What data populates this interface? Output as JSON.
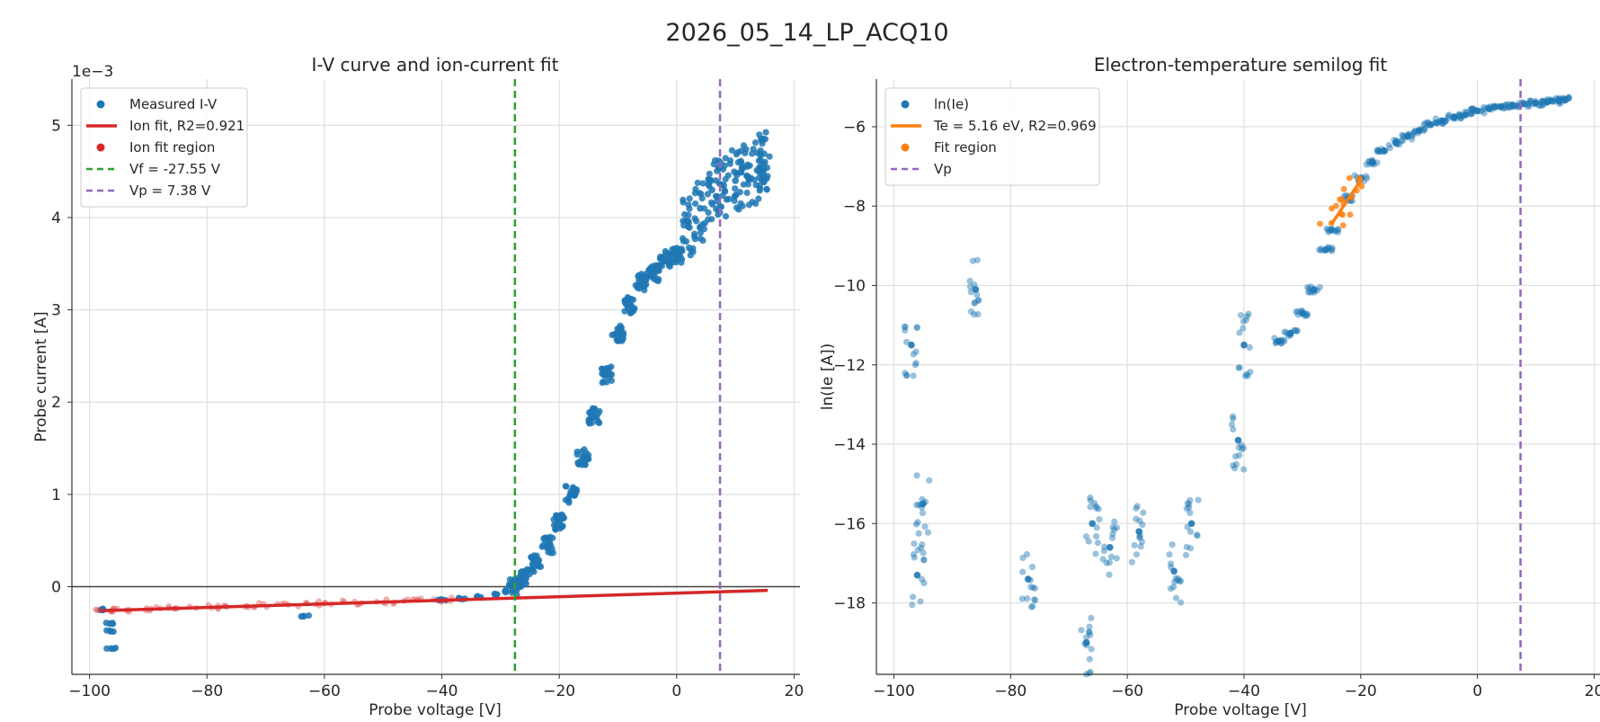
{
  "suptitle": "2026_05_14_LP_ACQ10",
  "colors": {
    "measured": "#1f77b4",
    "ion_fit": "#d62728",
    "vf": "#2ca02c",
    "vp": "#9467bd",
    "te_fit": "#ff7f0e",
    "zero_line": "#444444",
    "grid": "#dedede"
  },
  "chart_data": [
    {
      "type": "scatter",
      "title": "I-V curve and ion-current fit",
      "xlabel": "Probe voltage [V]",
      "ylabel": "Probe current [A]",
      "y_scale_label": "1e−3",
      "xlim": [
        -103,
        21
      ],
      "ylim": [
        -0.95,
        5.5
      ],
      "xticks": [
        -100,
        -80,
        -60,
        -40,
        -20,
        0,
        20
      ],
      "xtick_labels": [
        "−100",
        "−80",
        "−60",
        "−40",
        "−20",
        "0",
        "20"
      ],
      "yticks": [
        0,
        1,
        2,
        3,
        4,
        5
      ],
      "ytick_labels": [
        "0",
        "1",
        "2",
        "3",
        "4",
        "5"
      ],
      "grid": true,
      "legend_position": "top-left",
      "legend": [
        {
          "label": "Measured I-V",
          "kind": "dot",
          "color": "#1f77b4"
        },
        {
          "label": "Ion fit, R2=0.921",
          "kind": "line",
          "color": "#d62728"
        },
        {
          "label": "Ion fit region",
          "kind": "dot",
          "color": "#d62728"
        },
        {
          "label": "Vf = -27.55 V",
          "kind": "dashed",
          "color": "#2ca02c"
        },
        {
          "label": "Vp = 7.38 V",
          "kind": "dashed",
          "color": "#9467bd"
        }
      ],
      "vf": -27.55,
      "vp": 7.38,
      "ion_fit_line": {
        "x": [
          -98,
          15.5
        ],
        "y": [
          -0.26,
          -0.04
        ]
      },
      "ion_fit_region": [
        -98,
        -40
      ],
      "series": [
        {
          "name": "Measured I-V",
          "points": [
            [
              -98,
              -0.25
            ],
            [
              -96.5,
              -0.4
            ],
            [
              -96.5,
              -0.48
            ],
            [
              -96.3,
              -0.67
            ],
            [
              -63.5,
              -0.32
            ],
            [
              -40,
              -0.14
            ],
            [
              -37,
              -0.13
            ],
            [
              -34,
              -0.11
            ],
            [
              -31,
              -0.08
            ],
            [
              -29,
              -0.05
            ],
            [
              -27.55,
              0.0
            ],
            [
              -26,
              0.1
            ],
            [
              -24,
              0.25
            ],
            [
              -22,
              0.45
            ],
            [
              -20,
              0.7
            ],
            [
              -18,
              1.0
            ],
            [
              -16,
              1.4
            ],
            [
              -14,
              1.85
            ],
            [
              -12,
              2.3
            ],
            [
              -10,
              2.75
            ],
            [
              -8,
              3.05
            ],
            [
              -6,
              3.3
            ],
            [
              -4,
              3.4
            ],
            [
              -2,
              3.55
            ],
            [
              0,
              3.6
            ],
            [
              2,
              3.9
            ],
            [
              4,
              4.1
            ],
            [
              6,
              4.3
            ],
            [
              8,
              4.35
            ],
            [
              10,
              4.4
            ],
            [
              12,
              4.45
            ],
            [
              14,
              4.5
            ],
            [
              15,
              4.6
            ]
          ]
        },
        {
          "name": "Ion fit region",
          "points": [
            [
              -98,
              -0.26
            ],
            [
              -95,
              -0.25
            ],
            [
              -90,
              -0.24
            ],
            [
              -85,
              -0.23
            ],
            [
              -80,
              -0.22
            ],
            [
              -75,
              -0.21
            ],
            [
              -70,
              -0.2
            ],
            [
              -65,
              -0.19
            ],
            [
              -60,
              -0.18
            ],
            [
              -55,
              -0.17
            ],
            [
              -50,
              -0.16
            ],
            [
              -45,
              -0.15
            ],
            [
              -40,
              -0.14
            ]
          ]
        }
      ]
    },
    {
      "type": "scatter",
      "title": "Electron-temperature semilog fit",
      "xlabel": "Probe voltage [V]",
      "ylabel": "ln(Ie [A])",
      "xlim": [
        -103,
        21
      ],
      "ylim": [
        -19.8,
        -4.8
      ],
      "xticks": [
        -100,
        -80,
        -60,
        -40,
        -20,
        0,
        20
      ],
      "xtick_labels": [
        "−100",
        "−80",
        "−60",
        "−40",
        "−20",
        "0",
        "20"
      ],
      "yticks": [
        -18,
        -16,
        -14,
        -12,
        -10,
        -8,
        -6
      ],
      "ytick_labels": [
        "−18",
        "−16",
        "−14",
        "−12",
        "−10",
        "−8",
        "−6"
      ],
      "grid": true,
      "legend_position": "top-left",
      "legend": [
        {
          "label": "ln(Ie)",
          "kind": "dot",
          "color": "#1f77b4"
        },
        {
          "label": "Te = 5.16 eV, R2=0.969",
          "kind": "line",
          "color": "#ff7f0e"
        },
        {
          "label": "Fit region",
          "kind": "dot",
          "color": "#ff7f0e"
        },
        {
          "label": "Vp",
          "kind": "dashed",
          "color": "#9467bd"
        }
      ],
      "vp": 7.38,
      "te_fit_line": {
        "x": [
          -25,
          -20
        ],
        "y": [
          -8.45,
          -7.35
        ]
      },
      "series": [
        {
          "name": "ln(Ie)",
          "points": [
            [
              -97,
              -11.5
            ],
            [
              -95,
              -15.5
            ],
            [
              -96,
              -17.3
            ],
            [
              -86,
              -10.1
            ],
            [
              -77,
              -17.4
            ],
            [
              -67,
              -19.0
            ],
            [
              -66,
              -16.0
            ],
            [
              -63,
              -16.6
            ],
            [
              -58,
              -16.2
            ],
            [
              -52,
              -17.2
            ],
            [
              -49,
              -16.0
            ],
            [
              -41,
              -13.9
            ],
            [
              -40,
              -11.5
            ],
            [
              -34,
              -11.4
            ],
            [
              -32,
              -11.2
            ],
            [
              -30,
              -10.7
            ],
            [
              -28,
              -10.1
            ],
            [
              -26,
              -9.1
            ],
            [
              -25,
              -8.6
            ],
            [
              -22,
              -7.8
            ],
            [
              -20,
              -7.3
            ],
            [
              -18,
              -6.9
            ],
            [
              -16,
              -6.6
            ],
            [
              -14,
              -6.4
            ],
            [
              -12,
              -6.25
            ],
            [
              -10,
              -6.1
            ],
            [
              -8,
              -5.95
            ],
            [
              -6,
              -5.85
            ],
            [
              -4,
              -5.75
            ],
            [
              -2,
              -5.7
            ],
            [
              0,
              -5.6
            ],
            [
              2,
              -5.55
            ],
            [
              4,
              -5.5
            ],
            [
              6,
              -5.45
            ],
            [
              8,
              -5.42
            ],
            [
              10,
              -5.4
            ],
            [
              12,
              -5.38
            ],
            [
              14,
              -5.35
            ],
            [
              15,
              -5.33
            ]
          ]
        },
        {
          "name": "Fit region",
          "points": [
            [
              -25,
              -8.45
            ],
            [
              -24,
              -8.25
            ],
            [
              -23,
              -8.0
            ],
            [
              -22,
              -7.8
            ],
            [
              -21,
              -7.55
            ],
            [
              -20,
              -7.35
            ]
          ]
        }
      ]
    }
  ]
}
